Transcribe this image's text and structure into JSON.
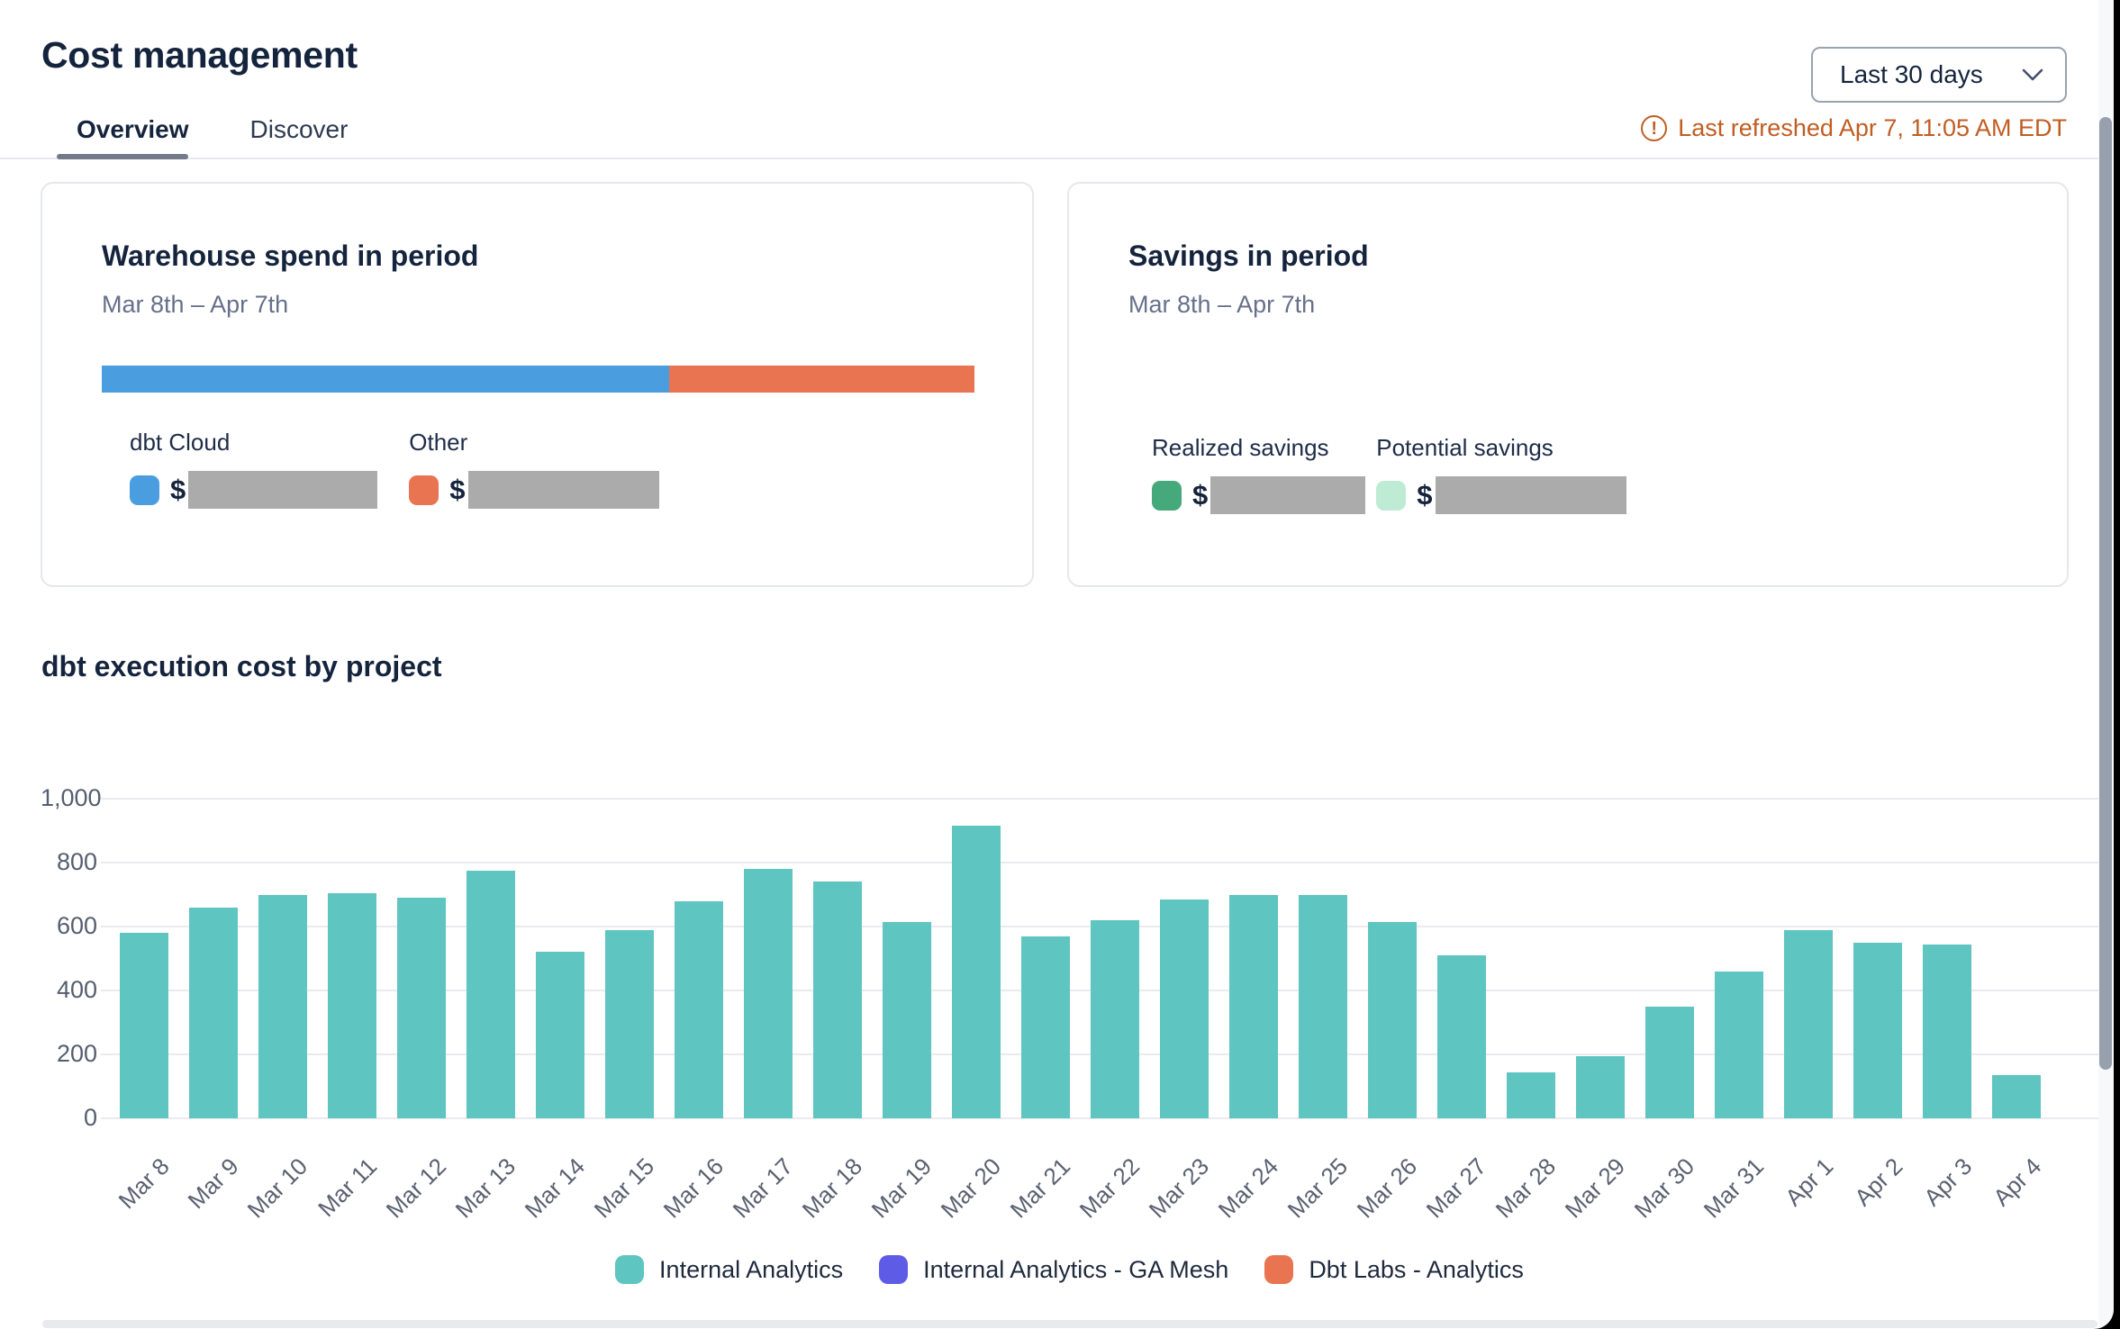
{
  "header": {
    "title": "Cost management",
    "period_selector": {
      "value": "Last 30 days"
    },
    "last_refreshed": "Last refreshed Apr 7, 11:05 AM EDT"
  },
  "tabs": [
    {
      "label": "Overview",
      "active": true
    },
    {
      "label": "Discover",
      "active": false
    }
  ],
  "cards": {
    "warehouse_spend": {
      "title": "Warehouse spend in period",
      "date_range": "Mar 8th – Apr 7th",
      "segments": [
        {
          "label": "dbt Cloud",
          "color": "#4A9EDF",
          "percent": 65,
          "currency_symbol": "$",
          "value_masked": true
        },
        {
          "label": "Other",
          "color": "#E97451",
          "percent": 35,
          "currency_symbol": "$",
          "value_masked": true
        }
      ]
    },
    "savings": {
      "title": "Savings in period",
      "date_range": "Mar 8th – Apr 7th",
      "items": [
        {
          "label": "Realized savings",
          "color": "#46A97B",
          "currency_symbol": "$",
          "value_masked": true
        },
        {
          "label": "Potential savings",
          "color": "#BEEBD3",
          "currency_symbol": "$",
          "value_masked": true
        }
      ]
    }
  },
  "chart_section": {
    "title": "dbt execution cost by project"
  },
  "chart_data": {
    "type": "bar",
    "title": "dbt execution cost by project",
    "categories": [
      "Mar 8",
      "Mar 9",
      "Mar 10",
      "Mar 11",
      "Mar 12",
      "Mar 13",
      "Mar 14",
      "Mar 15",
      "Mar 16",
      "Mar 17",
      "Mar 18",
      "Mar 19",
      "Mar 20",
      "Mar 21",
      "Mar 22",
      "Mar 23",
      "Mar 24",
      "Mar 25",
      "Mar 26",
      "Mar 27",
      "Mar 28",
      "Mar 29",
      "Mar 30",
      "Mar 31",
      "Apr 1",
      "Apr 2",
      "Apr 3",
      "Apr 4"
    ],
    "series": [
      {
        "name": "Internal Analytics",
        "color": "#5EC5C1",
        "values": [
          580,
          660,
          700,
          705,
          690,
          775,
          520,
          590,
          680,
          780,
          740,
          615,
          915,
          570,
          620,
          685,
          700,
          700,
          615,
          510,
          145,
          195,
          350,
          460,
          590,
          550,
          545,
          135
        ]
      },
      {
        "name": "Internal Analytics - GA Mesh",
        "color": "#5E5BE7",
        "values": [
          0,
          0,
          0,
          0,
          0,
          0,
          0,
          0,
          0,
          0,
          0,
          0,
          0,
          0,
          0,
          0,
          0,
          0,
          0,
          0,
          0,
          0,
          0,
          0,
          0,
          0,
          0,
          0
        ]
      },
      {
        "name": "Dbt Labs - Analytics",
        "color": "#E97451",
        "values": [
          0,
          0,
          0,
          0,
          0,
          0,
          0,
          0,
          0,
          0,
          0,
          0,
          0,
          0,
          0,
          0,
          0,
          0,
          0,
          0,
          0,
          0,
          0,
          0,
          0,
          0,
          0,
          0
        ]
      }
    ],
    "ylim": [
      0,
      1000
    ],
    "yticks": [
      0,
      200,
      400,
      600,
      800,
      1000
    ],
    "ytick_labels": [
      "0",
      "200",
      "400",
      "600",
      "800",
      "1,000"
    ],
    "grid": true,
    "legend_position": "bottom",
    "x_label_rotation": -45
  }
}
